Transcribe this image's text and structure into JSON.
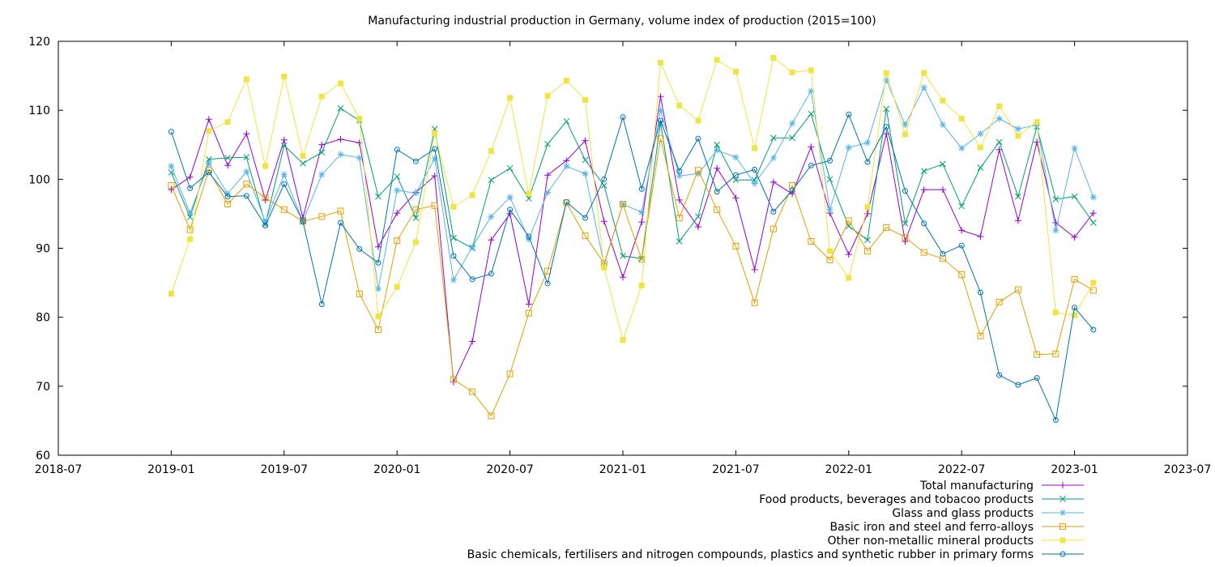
{
  "chart_data": {
    "type": "line",
    "title": "Manufacturing industrial production in Germany, volume index of production (2015=100)",
    "xlabel": "",
    "ylabel": "",
    "xlim": [
      "2018-07",
      "2023-07"
    ],
    "ylim": [
      60,
      120
    ],
    "grid": false,
    "legend_position": "bottom-right",
    "x_ticks": [
      "2018-07",
      "2019-01",
      "2019-07",
      "2020-01",
      "2020-07",
      "2021-01",
      "2021-07",
      "2022-01",
      "2022-07",
      "2023-01",
      "2023-07"
    ],
    "y_ticks": [
      60,
      70,
      80,
      90,
      100,
      110,
      120
    ],
    "x": [
      "2019-01",
      "2019-02",
      "2019-03",
      "2019-04",
      "2019-05",
      "2019-06",
      "2019-07",
      "2019-08",
      "2019-09",
      "2019-10",
      "2019-11",
      "2019-12",
      "2020-01",
      "2020-02",
      "2020-03",
      "2020-04",
      "2020-05",
      "2020-06",
      "2020-07",
      "2020-08",
      "2020-09",
      "2020-10",
      "2020-11",
      "2020-12",
      "2021-01",
      "2021-02",
      "2021-03",
      "2021-04",
      "2021-05",
      "2021-06",
      "2021-07",
      "2021-08",
      "2021-09",
      "2021-10",
      "2021-11",
      "2021-12",
      "2022-01",
      "2022-02",
      "2022-03",
      "2022-04",
      "2022-05",
      "2022-06",
      "2022-07",
      "2022-08",
      "2022-09",
      "2022-10",
      "2022-11",
      "2022-12",
      "2023-01",
      "2023-02"
    ],
    "series": [
      {
        "name": "Total manufacturing",
        "color": "#9400d3",
        "marker": "plus",
        "values": [
          98.5,
          100.3,
          108.7,
          102.0,
          106.6,
          97.0,
          105.7,
          94.4,
          105.0,
          105.8,
          105.3,
          90.2,
          95.1,
          98.1,
          100.5,
          70.6,
          76.5,
          91.2,
          95.0,
          81.9,
          100.6,
          102.7,
          105.6,
          93.9,
          85.8,
          93.8,
          112.0,
          97.0,
          93.1,
          101.6,
          97.3,
          86.9,
          99.6,
          97.9,
          104.7,
          95.1,
          89.1,
          95.0,
          106.6,
          91.0,
          98.5,
          98.5,
          92.6,
          91.7,
          104.3,
          94.0,
          105.4,
          93.7,
          91.6,
          95.1
        ]
      },
      {
        "name": "Food products, beverages and tobacoo products",
        "color": "#009e73",
        "marker": "cross",
        "values": [
          101.0,
          94.5,
          102.9,
          103.1,
          103.2,
          93.5,
          104.9,
          102.3,
          103.9,
          110.3,
          108.5,
          97.5,
          100.4,
          94.4,
          107.3,
          91.5,
          90.0,
          99.9,
          101.6,
          97.2,
          105.1,
          108.4,
          102.8,
          99.1,
          88.9,
          88.5,
          108.2,
          91.0,
          94.6,
          105.0,
          99.9,
          99.9,
          106.0,
          106.0,
          109.5,
          100.0,
          93.2,
          91.2,
          110.2,
          93.6,
          101.2,
          102.2,
          96.1,
          101.7,
          105.4,
          97.5,
          107.6,
          97.1,
          97.5,
          93.7
        ]
      },
      {
        "name": "Glass and glass products",
        "color": "#56b4e9",
        "marker": "star",
        "values": [
          101.9,
          95.1,
          102.3,
          97.9,
          101.1,
          93.8,
          100.7,
          93.9,
          100.7,
          103.6,
          103.1,
          84.1,
          98.4,
          98.0,
          103.0,
          85.4,
          90.2,
          94.6,
          97.4,
          91.3,
          98.1,
          101.9,
          100.8,
          87.6,
          96.4,
          95.2,
          110.0,
          100.5,
          100.8,
          104.2,
          103.2,
          99.4,
          103.1,
          108.1,
          112.8,
          95.6,
          104.6,
          105.3,
          114.4,
          107.9,
          113.3,
          107.9,
          104.5,
          106.6,
          108.8,
          107.3,
          107.9,
          92.6,
          104.5,
          97.4
        ]
      },
      {
        "name": "Basic iron and steel and ferro-alloys",
        "color": "#e69f00",
        "marker": "square",
        "values": [
          99.1,
          92.7,
          101.3,
          96.4,
          99.3,
          97.3,
          95.6,
          93.9,
          94.6,
          95.4,
          83.4,
          78.2,
          91.1,
          95.6,
          96.2,
          71.0,
          69.2,
          65.7,
          71.8,
          80.6,
          86.7,
          96.6,
          91.8,
          87.8,
          96.4,
          88.4,
          105.9,
          94.4,
          101.3,
          95.6,
          90.3,
          82.1,
          92.8,
          99.1,
          91.0,
          88.3,
          94.0,
          89.6,
          93.0,
          91.6,
          89.4,
          88.5,
          86.2,
          77.3,
          82.2,
          84.0,
          74.6,
          74.7,
          85.5,
          83.9
        ]
      },
      {
        "name": "Other non-metallic mineral products",
        "color": "#f0e442",
        "marker": "filled-square",
        "values": [
          83.4,
          91.3,
          107.0,
          108.3,
          114.5,
          101.9,
          114.9,
          103.4,
          112.0,
          113.9,
          108.8,
          80.1,
          84.4,
          90.9,
          106.7,
          96.0,
          97.7,
          104.1,
          111.8,
          97.9,
          112.1,
          114.3,
          111.5,
          87.2,
          76.7,
          84.6,
          116.9,
          110.7,
          108.5,
          117.3,
          115.6,
          104.5,
          117.6,
          115.5,
          115.8,
          89.6,
          85.7,
          96.0,
          115.4,
          106.5,
          115.4,
          111.4,
          108.8,
          104.6,
          110.6,
          106.3,
          108.3,
          80.7,
          80.3,
          85.0
        ]
      },
      {
        "name": "Basic chemicals, fertilisers and nitrogen compounds, plastics and synthetic rubber in primary forms",
        "color": "#0072b2",
        "marker": "circle",
        "values": [
          106.9,
          98.7,
          101.0,
          97.5,
          97.6,
          93.3,
          99.3,
          93.9,
          81.9,
          93.7,
          89.9,
          87.9,
          104.3,
          102.6,
          104.4,
          88.9,
          85.5,
          86.3,
          95.6,
          91.7,
          84.9,
          96.7,
          94.4,
          100.0,
          109.0,
          98.6,
          108.5,
          101.2,
          105.9,
          98.2,
          100.6,
          101.4,
          95.3,
          98.4,
          102.0,
          102.7,
          109.4,
          102.5,
          107.6,
          98.3,
          93.6,
          89.2,
          90.4,
          83.6,
          71.6,
          70.2,
          71.2,
          65.1,
          81.4,
          78.2
        ]
      }
    ]
  }
}
